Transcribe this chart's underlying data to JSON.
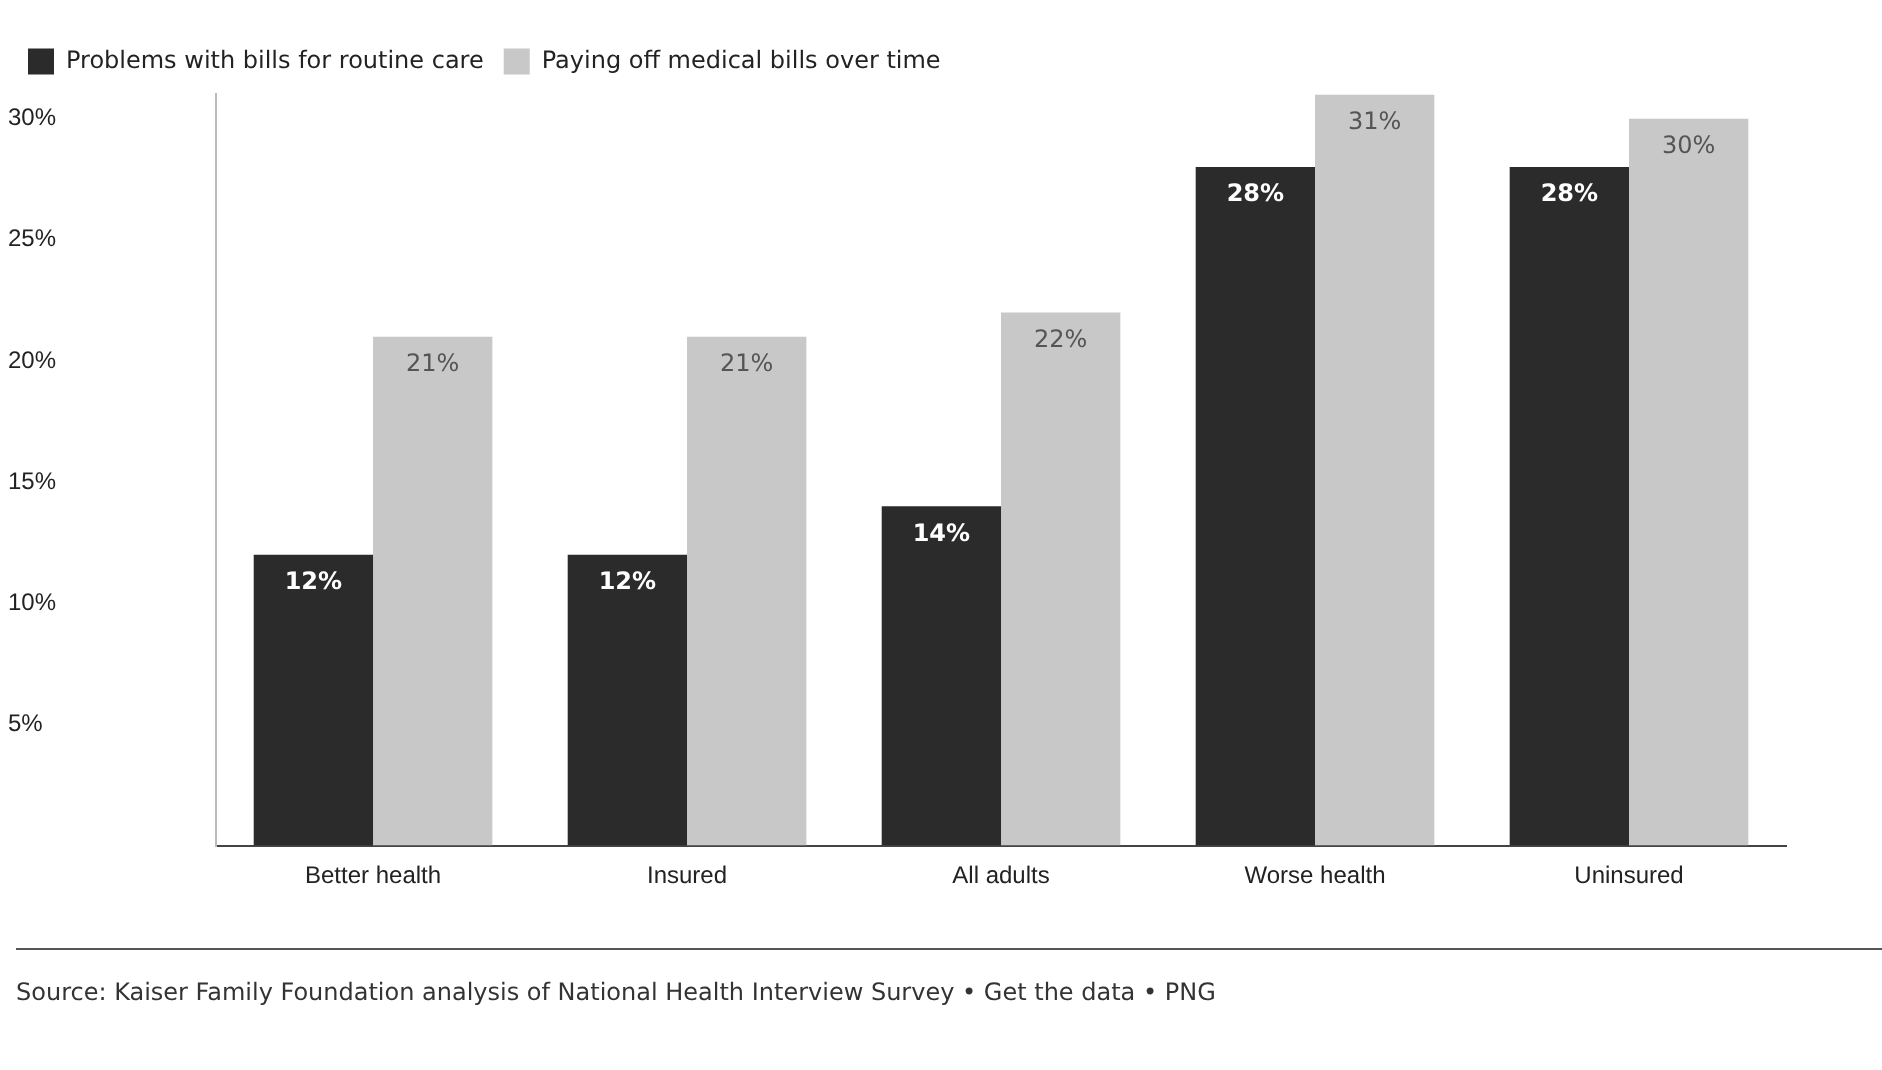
{
  "chart_data": {
    "type": "bar",
    "categories": [
      "Better health",
      "Insured",
      "All adults",
      "Worse health",
      "Uninsured"
    ],
    "series": [
      {
        "name": "Problems with bills for routine care",
        "color": "#2b2b2b",
        "values": [
          12,
          12,
          14,
          28,
          28
        ],
        "value_labels": [
          "12%",
          "12%",
          "14%",
          "28%",
          "28%"
        ]
      },
      {
        "name": "Paying off medical bills over time",
        "color": "#c8c8c8",
        "values": [
          21,
          21,
          22,
          31,
          30
        ],
        "value_labels": [
          "21%",
          "21%",
          "22%",
          "31%",
          "30%"
        ]
      }
    ],
    "ylim": [
      0,
      31
    ],
    "yticks": [
      {
        "value": 5,
        "label": "5%"
      },
      {
        "value": 10,
        "label": "10%"
      },
      {
        "value": 15,
        "label": "15%"
      },
      {
        "value": 20,
        "label": "20%"
      },
      {
        "value": 25,
        "label": "25%"
      },
      {
        "value": 30,
        "label": "30%"
      }
    ],
    "grid": false,
    "legend": "top left",
    "annotations": [
      "Source: Kaiser Family Foundation analysis of National Health Interview Survey • Get the data • PNG"
    ]
  }
}
